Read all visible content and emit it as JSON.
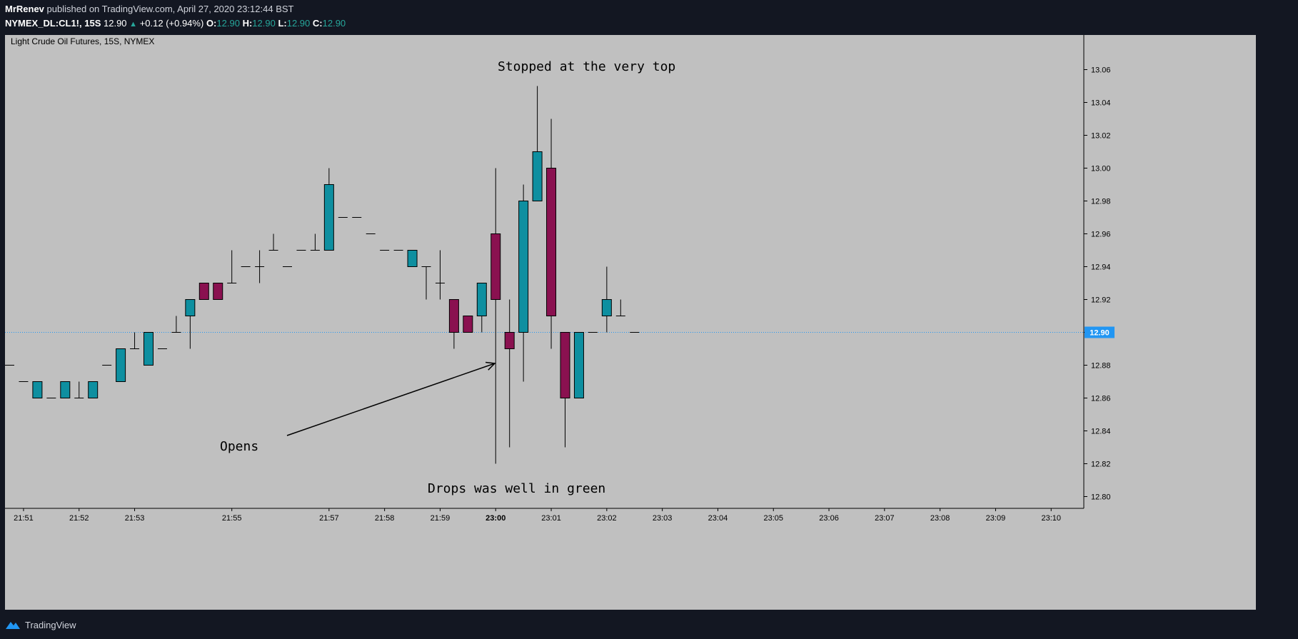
{
  "header": {
    "author": "MrRenev",
    "published_text": "published on TradingView.com, April 27, 2020 23:12:44 BST",
    "symbol": "NYMEX_DL:CL1!, 15S",
    "last_price": "12.90",
    "change": "+0.12 (+0.94%)",
    "o_label": "O:",
    "o_value": "12.90",
    "h_label": "H:",
    "h_value": "12.90",
    "l_label": "L:",
    "l_value": "12.90",
    "c_label": "C:",
    "c_value": "12.90"
  },
  "footer": {
    "brand": "TradingView",
    "logo_icon": "tradingview-logo-icon"
  },
  "colors": {
    "background": "#131722",
    "pane": "#c0c0c0",
    "up": "#0e8fa0",
    "down": "#8a1150",
    "price_line": "#2196f3",
    "text": "#d1d4dc"
  },
  "chart_data": {
    "type": "candlestick",
    "title": "Light Crude Oil Futures, 15S, NYMEX",
    "ylim": [
      12.795,
      13.075
    ],
    "y_ticks": [
      "12.80",
      "12.82",
      "12.84",
      "12.86",
      "12.88",
      "12.90",
      "12.92",
      "12.94",
      "12.96",
      "12.98",
      "13.00",
      "13.02",
      "13.04",
      "13.06"
    ],
    "x_ticks": [
      {
        "label": "21:51",
        "i": 1,
        "bold": false
      },
      {
        "label": "21:52",
        "i": 5,
        "bold": false
      },
      {
        "label": "21:53",
        "i": 9,
        "bold": false
      },
      {
        "label": "21:55",
        "i": 16,
        "bold": false
      },
      {
        "label": "21:57",
        "i": 23,
        "bold": false
      },
      {
        "label": "21:58",
        "i": 27,
        "bold": false
      },
      {
        "label": "21:59",
        "i": 31,
        "bold": false
      },
      {
        "label": "23:00",
        "i": 35,
        "bold": true
      },
      {
        "label": "23:01",
        "i": 39,
        "bold": false
      },
      {
        "label": "23:02",
        "i": 43,
        "bold": false
      },
      {
        "label": "23:03",
        "i": 47,
        "bold": false
      },
      {
        "label": "23:04",
        "i": 51,
        "bold": false
      },
      {
        "label": "23:05",
        "i": 55,
        "bold": false
      },
      {
        "label": "23:06",
        "i": 59,
        "bold": false
      },
      {
        "label": "23:07",
        "i": 63,
        "bold": false
      },
      {
        "label": "23:08",
        "i": 67,
        "bold": false
      },
      {
        "label": "23:09",
        "i": 71,
        "bold": false
      },
      {
        "label": "23:10",
        "i": 75,
        "bold": false
      }
    ],
    "candles": [
      {
        "o": 12.88,
        "h": 12.88,
        "l": 12.88,
        "c": 12.88
      },
      {
        "o": 12.87,
        "h": 12.87,
        "l": 12.87,
        "c": 12.87
      },
      {
        "o": 12.86,
        "h": 12.87,
        "l": 12.86,
        "c": 12.87
      },
      {
        "o": 12.86,
        "h": 12.86,
        "l": 12.86,
        "c": 12.86
      },
      {
        "o": 12.86,
        "h": 12.87,
        "l": 12.86,
        "c": 12.87
      },
      {
        "o": 12.86,
        "h": 12.87,
        "l": 12.86,
        "c": 12.86
      },
      {
        "o": 12.86,
        "h": 12.87,
        "l": 12.86,
        "c": 12.87
      },
      {
        "o": 12.88,
        "h": 12.88,
        "l": 12.88,
        "c": 12.88
      },
      {
        "o": 12.87,
        "h": 12.89,
        "l": 12.87,
        "c": 12.89
      },
      {
        "o": 12.89,
        "h": 12.9,
        "l": 12.89,
        "c": 12.89
      },
      {
        "o": 12.88,
        "h": 12.9,
        "l": 12.88,
        "c": 12.9
      },
      {
        "o": 12.89,
        "h": 12.89,
        "l": 12.89,
        "c": 12.89
      },
      {
        "o": 12.9,
        "h": 12.91,
        "l": 12.9,
        "c": 12.9
      },
      {
        "o": 12.91,
        "h": 12.92,
        "l": 12.89,
        "c": 12.92
      },
      {
        "o": 12.93,
        "h": 12.93,
        "l": 12.92,
        "c": 12.92
      },
      {
        "o": 12.93,
        "h": 12.93,
        "l": 12.92,
        "c": 12.92
      },
      {
        "o": 12.93,
        "h": 12.95,
        "l": 12.93,
        "c": 12.93
      },
      {
        "o": 12.94,
        "h": 12.94,
        "l": 12.94,
        "c": 12.94
      },
      {
        "o": 12.94,
        "h": 12.95,
        "l": 12.93,
        "c": 12.94
      },
      {
        "o": 12.95,
        "h": 12.96,
        "l": 12.95,
        "c": 12.95
      },
      {
        "o": 12.94,
        "h": 12.94,
        "l": 12.94,
        "c": 12.94
      },
      {
        "o": 12.95,
        "h": 12.95,
        "l": 12.95,
        "c": 12.95
      },
      {
        "o": 12.95,
        "h": 12.96,
        "l": 12.95,
        "c": 12.95
      },
      {
        "o": 12.95,
        "h": 13.0,
        "l": 12.95,
        "c": 12.99
      },
      {
        "o": 12.97,
        "h": 12.97,
        "l": 12.97,
        "c": 12.97
      },
      {
        "o": 12.97,
        "h": 12.97,
        "l": 12.97,
        "c": 12.97
      },
      {
        "o": 12.96,
        "h": 12.96,
        "l": 12.96,
        "c": 12.96
      },
      {
        "o": 12.95,
        "h": 12.95,
        "l": 12.95,
        "c": 12.95
      },
      {
        "o": 12.95,
        "h": 12.95,
        "l": 12.95,
        "c": 12.95
      },
      {
        "o": 12.94,
        "h": 12.95,
        "l": 12.94,
        "c": 12.95
      },
      {
        "o": 12.94,
        "h": 12.94,
        "l": 12.92,
        "c": 12.94
      },
      {
        "o": 12.93,
        "h": 12.95,
        "l": 12.92,
        "c": 12.93
      },
      {
        "o": 12.92,
        "h": 12.92,
        "l": 12.89,
        "c": 12.9
      },
      {
        "o": 12.91,
        "h": 12.91,
        "l": 12.9,
        "c": 12.9
      },
      {
        "o": 12.91,
        "h": 12.93,
        "l": 12.9,
        "c": 12.93
      },
      {
        "o": 12.96,
        "h": 13.0,
        "l": 12.82,
        "c": 12.92
      },
      {
        "o": 12.9,
        "h": 12.92,
        "l": 12.83,
        "c": 12.89
      },
      {
        "o": 12.9,
        "h": 12.99,
        "l": 12.87,
        "c": 12.98
      },
      {
        "o": 12.98,
        "h": 13.05,
        "l": 12.98,
        "c": 13.01
      },
      {
        "o": 13.0,
        "h": 13.03,
        "l": 12.89,
        "c": 12.91
      },
      {
        "o": 12.9,
        "h": 12.9,
        "l": 12.83,
        "c": 12.86
      },
      {
        "o": 12.86,
        "h": 12.9,
        "l": 12.86,
        "c": 12.9
      },
      {
        "o": 12.9,
        "h": 12.9,
        "l": 12.9,
        "c": 12.9
      },
      {
        "o": 12.91,
        "h": 12.94,
        "l": 12.9,
        "c": 12.92
      },
      {
        "o": 12.91,
        "h": 12.92,
        "l": 12.91,
        "c": 12.91
      },
      {
        "o": 12.9,
        "h": 12.9,
        "l": 12.9,
        "c": 12.9
      }
    ],
    "last_price": 12.9,
    "last_price_label": "12.90",
    "annotations": [
      {
        "text": "Stopped at the very top"
      },
      {
        "text": "Opens"
      },
      {
        "text": "Drops was well in green"
      }
    ],
    "grid": false,
    "legend": "none"
  }
}
